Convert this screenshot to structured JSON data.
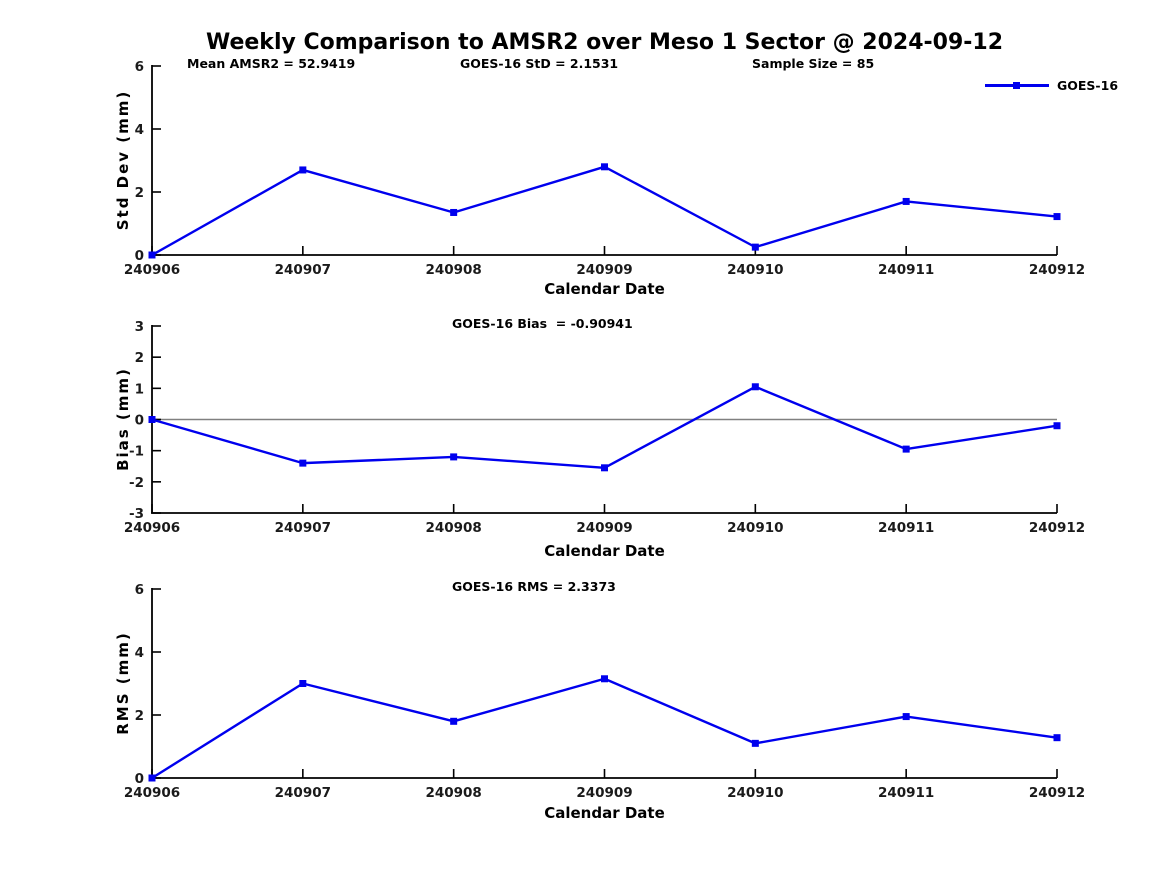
{
  "page_title": "Weekly Comparison to AMSR2 over Meso 1 Sector @ 2024-09-12",
  "legend": {
    "label": "GOES-16",
    "position": "top-right"
  },
  "colors": {
    "series": "#0000EE",
    "axis": "#000000",
    "zero_line": "#808080",
    "tick_text": "#1a1a1a",
    "label_text": "#000000"
  },
  "chart_data": [
    {
      "type": "line",
      "name": "std-dev",
      "annotations": [
        "Mean AMSR2 = 52.9419",
        "GOES-16 StD = 2.1531",
        "Sample Size = 85"
      ],
      "categories": [
        "240906",
        "240907",
        "240908",
        "240909",
        "240910",
        "240911",
        "240912"
      ],
      "series": [
        {
          "name": "GOES-16",
          "values": [
            0.0,
            2.7,
            1.35,
            2.8,
            0.25,
            1.7,
            1.22
          ]
        }
      ],
      "xlabel": "Calendar Date",
      "ylabel": "Std Dev (mm)",
      "ylim": [
        0,
        6
      ],
      "yticks": [
        0,
        2,
        4,
        6
      ],
      "zero_line": false,
      "grid": false,
      "legend_position": "top-right"
    },
    {
      "type": "line",
      "name": "bias",
      "annotations": [
        "GOES-16 Bias  = -0.90941"
      ],
      "categories": [
        "240906",
        "240907",
        "240908",
        "240909",
        "240910",
        "240911",
        "240912"
      ],
      "series": [
        {
          "name": "GOES-16",
          "values": [
            0.0,
            -1.4,
            -1.2,
            -1.55,
            1.05,
            -0.95,
            -0.2
          ]
        }
      ],
      "xlabel": "Calendar Date",
      "ylabel": "Bias (mm)",
      "ylim": [
        -3,
        3
      ],
      "yticks": [
        3,
        2,
        1,
        0,
        -1,
        -2,
        -3
      ],
      "zero_line": true,
      "grid": false
    },
    {
      "type": "line",
      "name": "rms",
      "annotations": [
        "GOES-16 RMS = 2.3373"
      ],
      "categories": [
        "240906",
        "240907",
        "240908",
        "240909",
        "240910",
        "240911",
        "240912"
      ],
      "series": [
        {
          "name": "GOES-16",
          "values": [
            0.0,
            3.0,
            1.8,
            3.15,
            1.1,
            1.95,
            1.28
          ]
        }
      ],
      "xlabel": "Calendar Date",
      "ylabel": "RMS (mm)",
      "ylim": [
        0,
        6
      ],
      "yticks": [
        0,
        2,
        4,
        6
      ],
      "zero_line": false,
      "grid": false
    }
  ]
}
